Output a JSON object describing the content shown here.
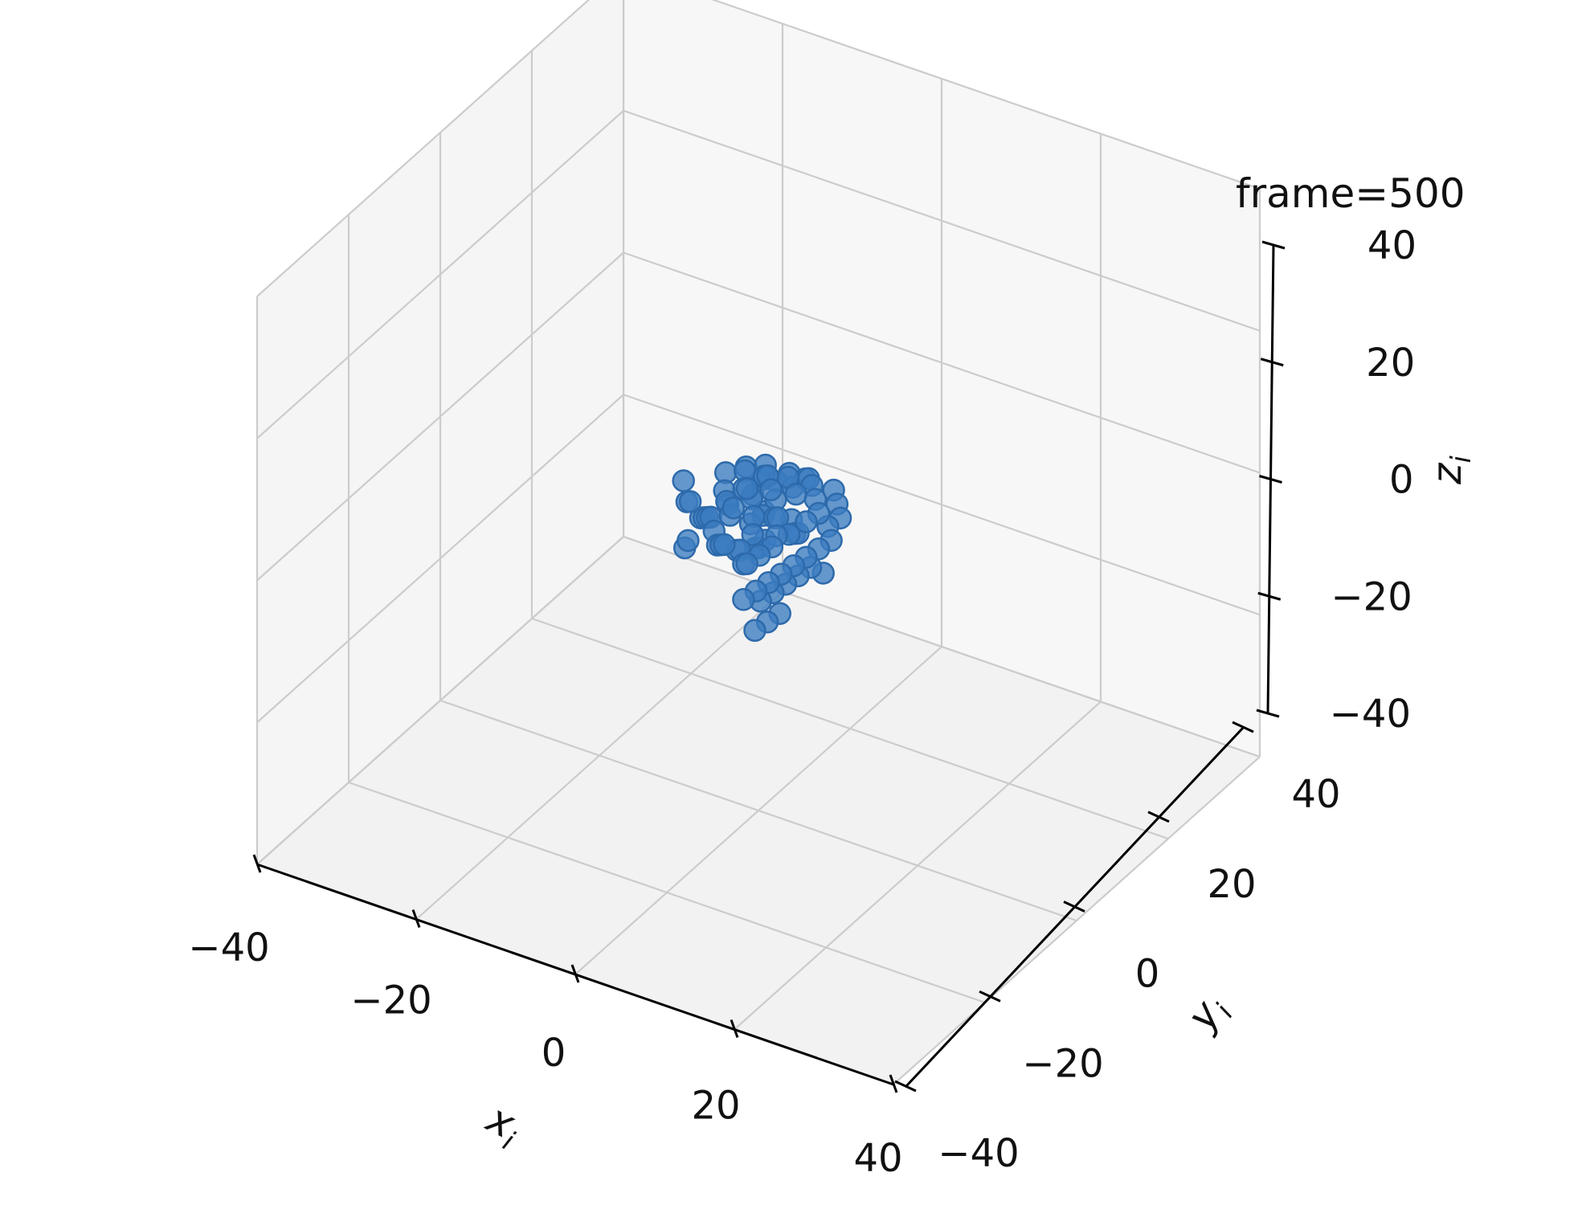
{
  "chart_data": {
    "type": "scatter",
    "projection": "3d",
    "title": "frame=500",
    "xlabel": "x_i",
    "ylabel": "y_i",
    "zlabel": "z_i",
    "xlim": [
      -40,
      40
    ],
    "ylim": [
      -40,
      40
    ],
    "zlim": [
      -40,
      40
    ],
    "xticks": [
      "−40",
      "−20",
      "0",
      "20",
      "40"
    ],
    "yticks": [
      "−40",
      "−20",
      "0",
      "20",
      "40"
    ],
    "zticks": [
      "−40",
      "−20",
      "0",
      "20",
      "40"
    ],
    "grid": true,
    "series": [
      {
        "color": "#3b7cc0",
        "points": [
          [
            -3,
            4,
            1
          ],
          [
            -2,
            2,
            2
          ],
          [
            -1,
            3,
            0
          ],
          [
            0,
            1,
            1
          ],
          [
            1,
            2,
            3
          ],
          [
            2,
            0,
            2
          ],
          [
            3,
            2,
            1
          ],
          [
            4,
            1,
            0
          ],
          [
            -4,
            0,
            2
          ],
          [
            -3,
            -1,
            1
          ],
          [
            -2,
            -2,
            3
          ],
          [
            -1,
            0,
            0
          ],
          [
            0,
            -1,
            2
          ],
          [
            1,
            -3,
            1
          ],
          [
            2,
            -2,
            0
          ],
          [
            3,
            -1,
            3
          ],
          [
            4,
            -3,
            2
          ],
          [
            5,
            0,
            1
          ],
          [
            -5,
            2,
            0
          ],
          [
            -6,
            3,
            1
          ],
          [
            -7,
            5,
            2
          ],
          [
            -5,
            6,
            3
          ],
          [
            -4,
            4,
            4
          ],
          [
            -3,
            6,
            2
          ],
          [
            -2,
            5,
            5
          ],
          [
            0,
            4,
            4
          ],
          [
            1,
            5,
            5
          ],
          [
            2,
            4,
            4
          ],
          [
            3,
            5,
            5
          ],
          [
            4,
            4,
            6
          ],
          [
            5,
            3,
            6
          ],
          [
            6,
            2,
            5
          ],
          [
            7,
            1,
            4
          ],
          [
            6,
            0,
            3
          ],
          [
            5,
            -2,
            2
          ],
          [
            4,
            -4,
            1
          ],
          [
            3,
            -5,
            0
          ],
          [
            2,
            -6,
            -1
          ],
          [
            1,
            -5,
            -2
          ],
          [
            0,
            -4,
            -1
          ],
          [
            -1,
            -3,
            -2
          ],
          [
            -2,
            -4,
            -1
          ],
          [
            -3,
            -3,
            -2
          ],
          [
            -4,
            -2,
            -3
          ],
          [
            -5,
            -1,
            -2
          ],
          [
            -6,
            0,
            -1
          ],
          [
            -7,
            1,
            -2
          ],
          [
            -8,
            2,
            -3
          ],
          [
            -9,
            3,
            -4
          ],
          [
            -10,
            2,
            -7
          ],
          [
            -11,
            3,
            -9
          ],
          [
            -10,
            1,
            2
          ],
          [
            -9,
            0,
            0
          ],
          [
            -8,
            -1,
            1
          ],
          [
            6,
            6,
            4
          ],
          [
            7,
            5,
            3
          ],
          [
            8,
            4,
            2
          ],
          [
            7,
            3,
            1
          ],
          [
            8,
            2,
            0
          ],
          [
            7,
            1,
            -1
          ],
          [
            6,
            0,
            -2
          ],
          [
            5,
            -1,
            -3
          ],
          [
            4,
            -2,
            -4
          ],
          [
            3,
            -3,
            -5
          ],
          [
            2,
            -4,
            -6
          ],
          [
            1,
            -5,
            -7
          ],
          [
            2,
            -3,
            -8
          ],
          [
            3,
            -2,
            -7
          ],
          [
            4,
            -1,
            -6
          ],
          [
            5,
            0,
            -5
          ],
          [
            6,
            1,
            -4
          ],
          [
            7,
            2,
            -5
          ],
          [
            4,
            -5,
            -9
          ],
          [
            5,
            -4,
            -8
          ],
          [
            3,
            -6,
            -10
          ],
          [
            0,
            0,
            -3
          ],
          [
            -1,
            1,
            -4
          ],
          [
            1,
            1,
            5
          ],
          [
            0,
            2,
            6
          ],
          [
            -1,
            3,
            5
          ],
          [
            2,
            3,
            6
          ],
          [
            3,
            3,
            4
          ],
          [
            -2,
            1,
            4
          ],
          [
            -3,
            2,
            3
          ]
        ]
      }
    ]
  }
}
